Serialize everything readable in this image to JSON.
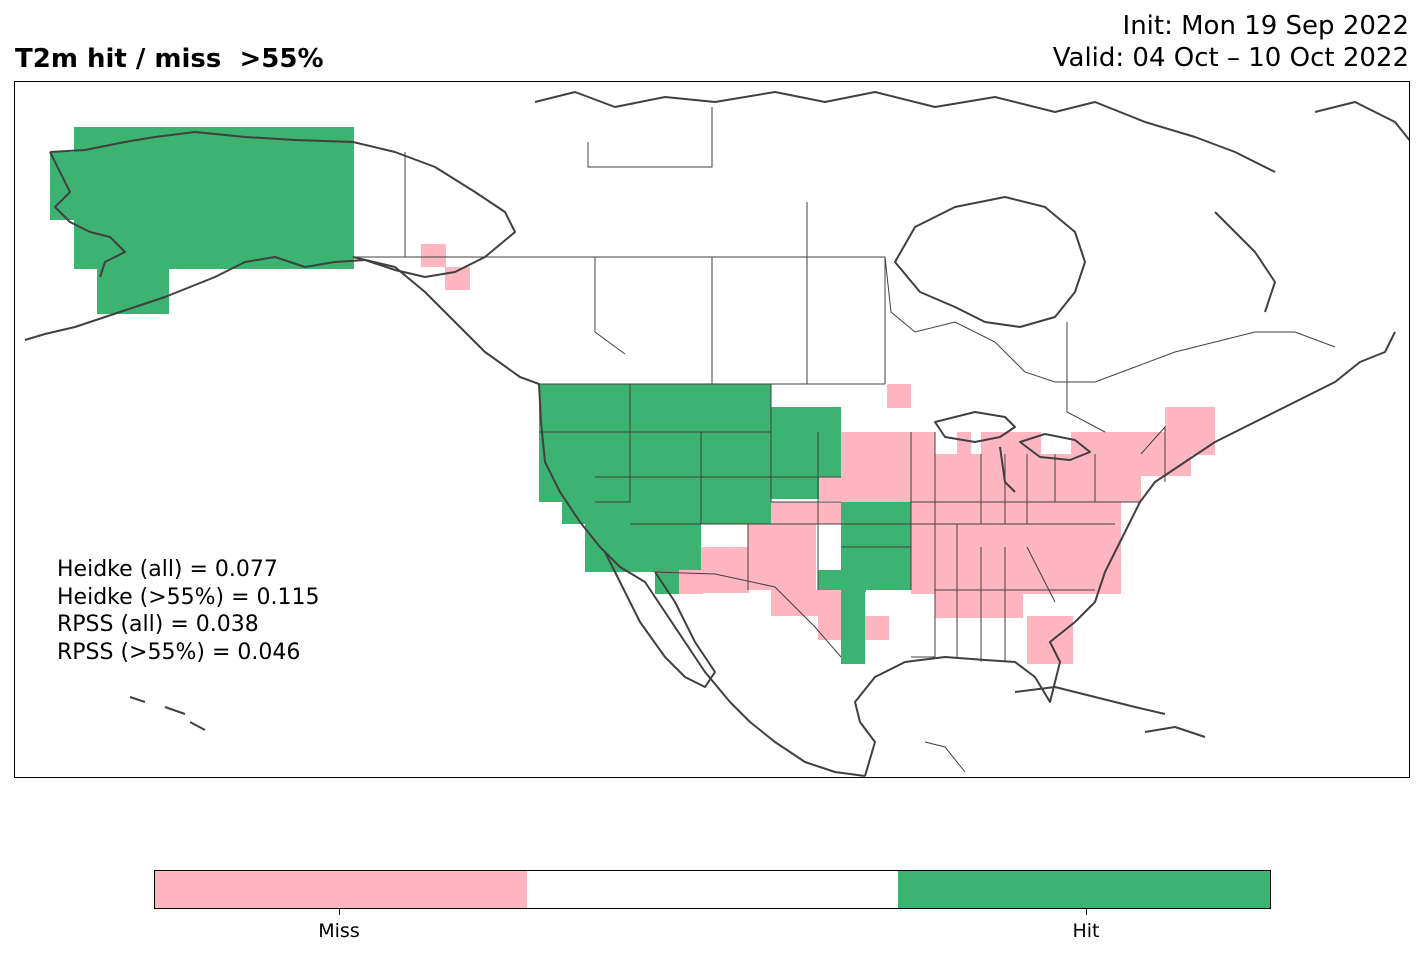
{
  "header": {
    "title": "T2m hit / miss  >55%",
    "init": "Init: Mon 19 Sep 2022",
    "valid": "Valid: 04 Oct – 10 Oct 2022"
  },
  "scores": {
    "heidke_all": "Heidke (all) = 0.077",
    "heidke_55": "Heidke (>55%) = 0.115",
    "rpss_all": "RPSS (all) = 0.038",
    "rpss_55": "RPSS (>55%) = 0.046"
  },
  "colors": {
    "miss": "#FFB6C1",
    "neutral": "#FFFFFF",
    "hit": "#3CB371",
    "coastline": "#404040"
  },
  "colorbar": {
    "labels": [
      "Miss",
      "Hit"
    ]
  },
  "map": {
    "region": "North America",
    "projection": "PlateCarree",
    "hit_regions": [
      "Alaska",
      "Pacific Northwest",
      "Northern Rockies",
      "Great Basin",
      "Southwest",
      "Northern Plains",
      "Oklahoma",
      "Central Texas"
    ],
    "miss_regions": [
      "Southeast Alaska coast",
      "Midwest",
      "Great Lakes",
      "Northeast",
      "Southeast",
      "Florida",
      "Southern Plains",
      "New Mexico",
      "Texas Gulf coast"
    ]
  }
}
